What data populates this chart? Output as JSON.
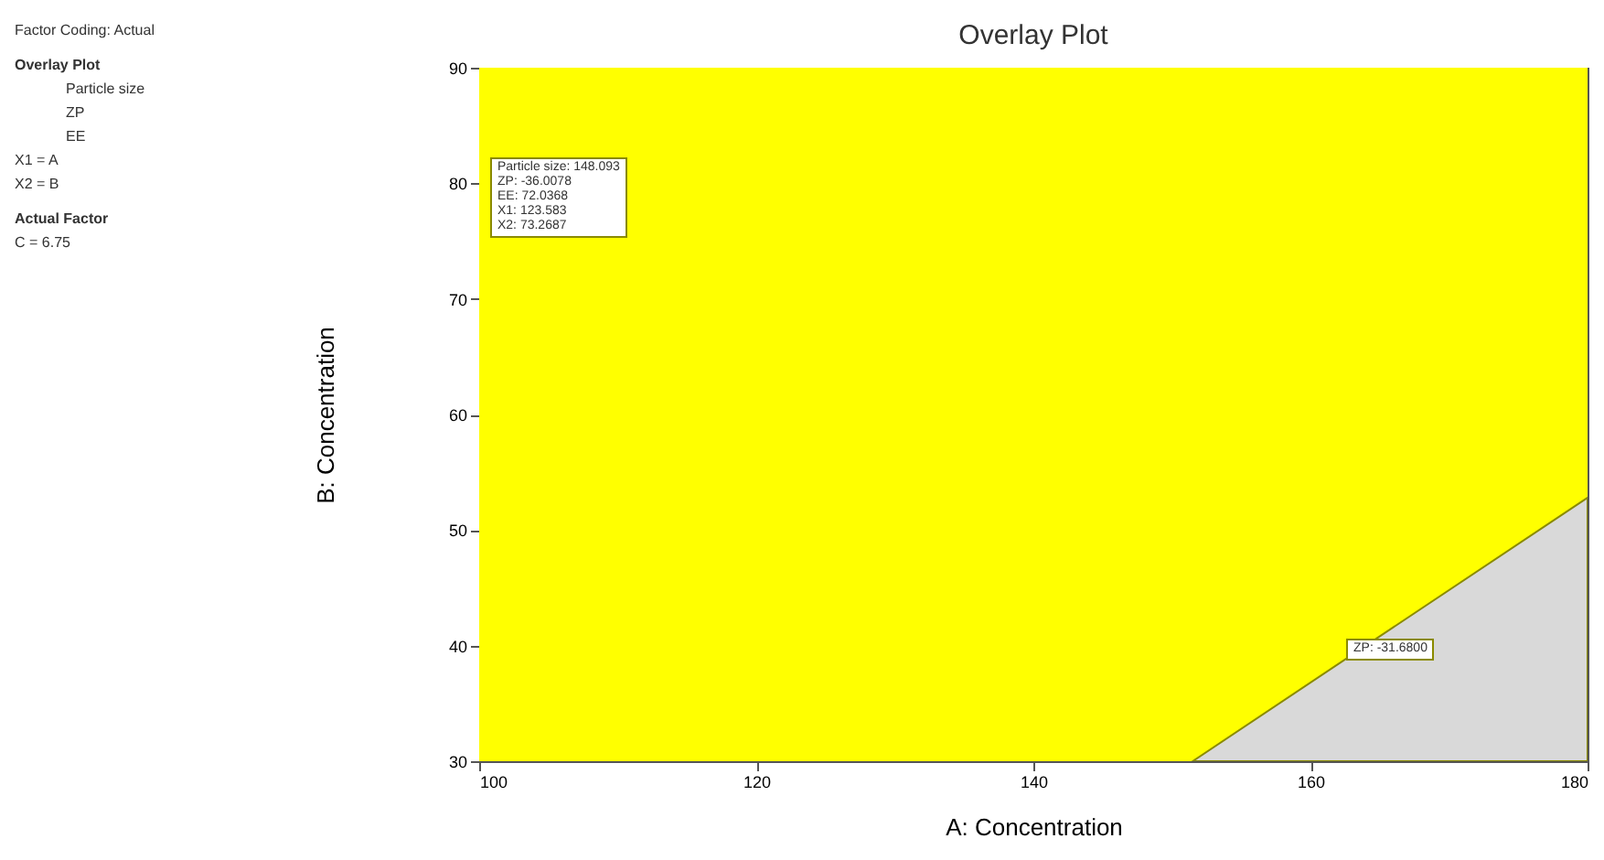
{
  "chart_data": {
    "type": "area",
    "title": "Overlay Plot",
    "xlabel": "A: Concentration",
    "ylabel": "B: Concentration",
    "x": [
      151.5,
      180
    ],
    "series": [
      {
        "color": "#d9d9d9",
        "values": [
          30,
          52.8
        ]
      }
    ],
    "xlim": [
      100,
      180
    ],
    "xticks": [
      100,
      120,
      140,
      160,
      180
    ],
    "ylim": [
      30,
      90
    ],
    "yticks": [
      30,
      40,
      50,
      60,
      70,
      80,
      90
    ],
    "bands": [
      {
        "axis": "y",
        "from": 30,
        "to": 90,
        "color": "#ffff00"
      }
    ],
    "grid": false,
    "annotations": [
      "Factor Coding: Actual",
      "Overlay Plot",
      "Particle size",
      "ZP",
      "EE",
      "X1 = A",
      "X2 = B",
      "Actual Factor",
      "C = 6.75",
      "Particle size: 148.093\nZP: -36.0078\nEE: 72.0368\nX1: 123.583\nX2: 73.2687",
      "ZP: -31.6800"
    ]
  }
}
